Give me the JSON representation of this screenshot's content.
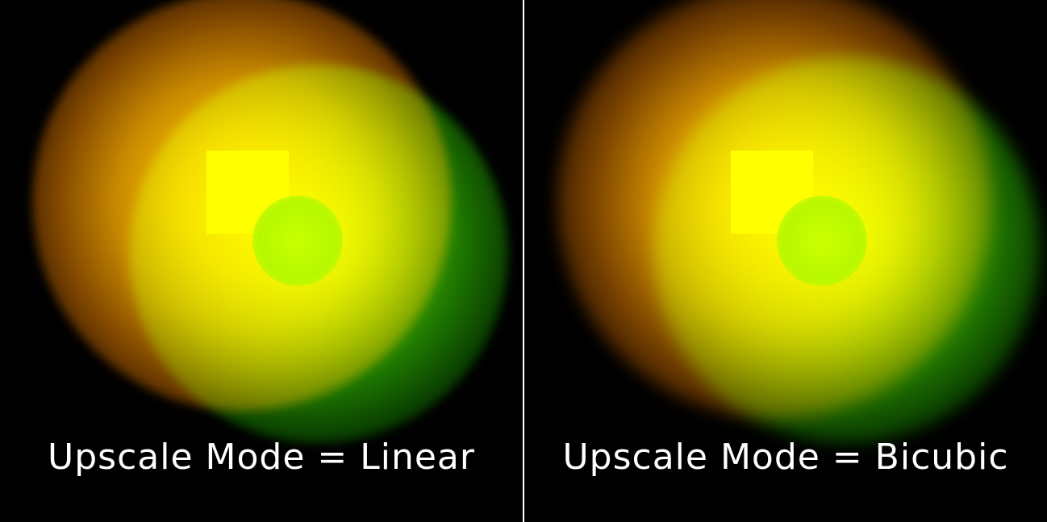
{
  "panels": [
    {
      "caption": "Upscale Mode = Linear"
    },
    {
      "caption": "Upscale Mode = Bicubic"
    }
  ],
  "colors": {
    "background": "#000000",
    "square": "#ffff00",
    "glow_orange": "#f2b800",
    "glow_green": "#4fb000",
    "divider": "#ffffff",
    "caption": "#ffffff"
  }
}
